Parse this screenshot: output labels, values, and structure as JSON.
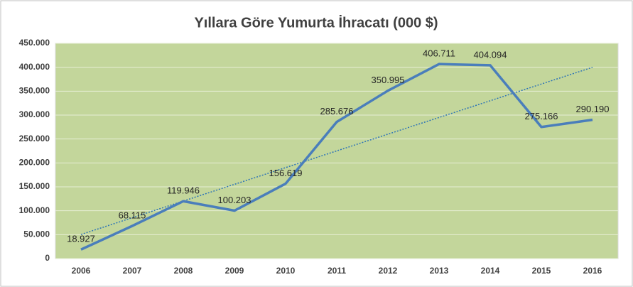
{
  "chart_data": {
    "type": "line",
    "title": "Yıllara Göre Yumurta İhracatı (000 $)",
    "categories": [
      "2006",
      "2007",
      "2008",
      "2009",
      "2010",
      "2011",
      "2012",
      "2013",
      "2014",
      "2015",
      "2016"
    ],
    "values": [
      18927,
      68115,
      119946,
      100203,
      156619,
      285676,
      350995,
      406711,
      404094,
      275166,
      290190
    ],
    "value_labels": [
      "18.927",
      "68.115",
      "119.946",
      "100.203",
      "156.619",
      "285.676",
      "350.995",
      "406.711",
      "404.094",
      "275.166",
      "290.190"
    ],
    "color": "#4a7ebb",
    "trendline": true,
    "trendline_color": "#2e75b6",
    "plot_background": "#c3d69b",
    "grid": true,
    "ylim": [
      0,
      450000
    ],
    "yticks": [
      0,
      {
        "value": 50000,
        "label": "50.000"
      },
      {
        "value": 100000,
        "label": "100.000"
      },
      {
        "value": 150000,
        "label": "150.000"
      },
      {
        "value": 200000,
        "label": "200.000"
      },
      {
        "value": 250000,
        "label": "250.000"
      },
      {
        "value": 300000,
        "label": "300.000"
      },
      {
        "value": 350000,
        "label": "350.000"
      },
      {
        "value": 400000,
        "label": "400.000"
      },
      {
        "value": 450000,
        "label": "450.000"
      }
    ]
  }
}
